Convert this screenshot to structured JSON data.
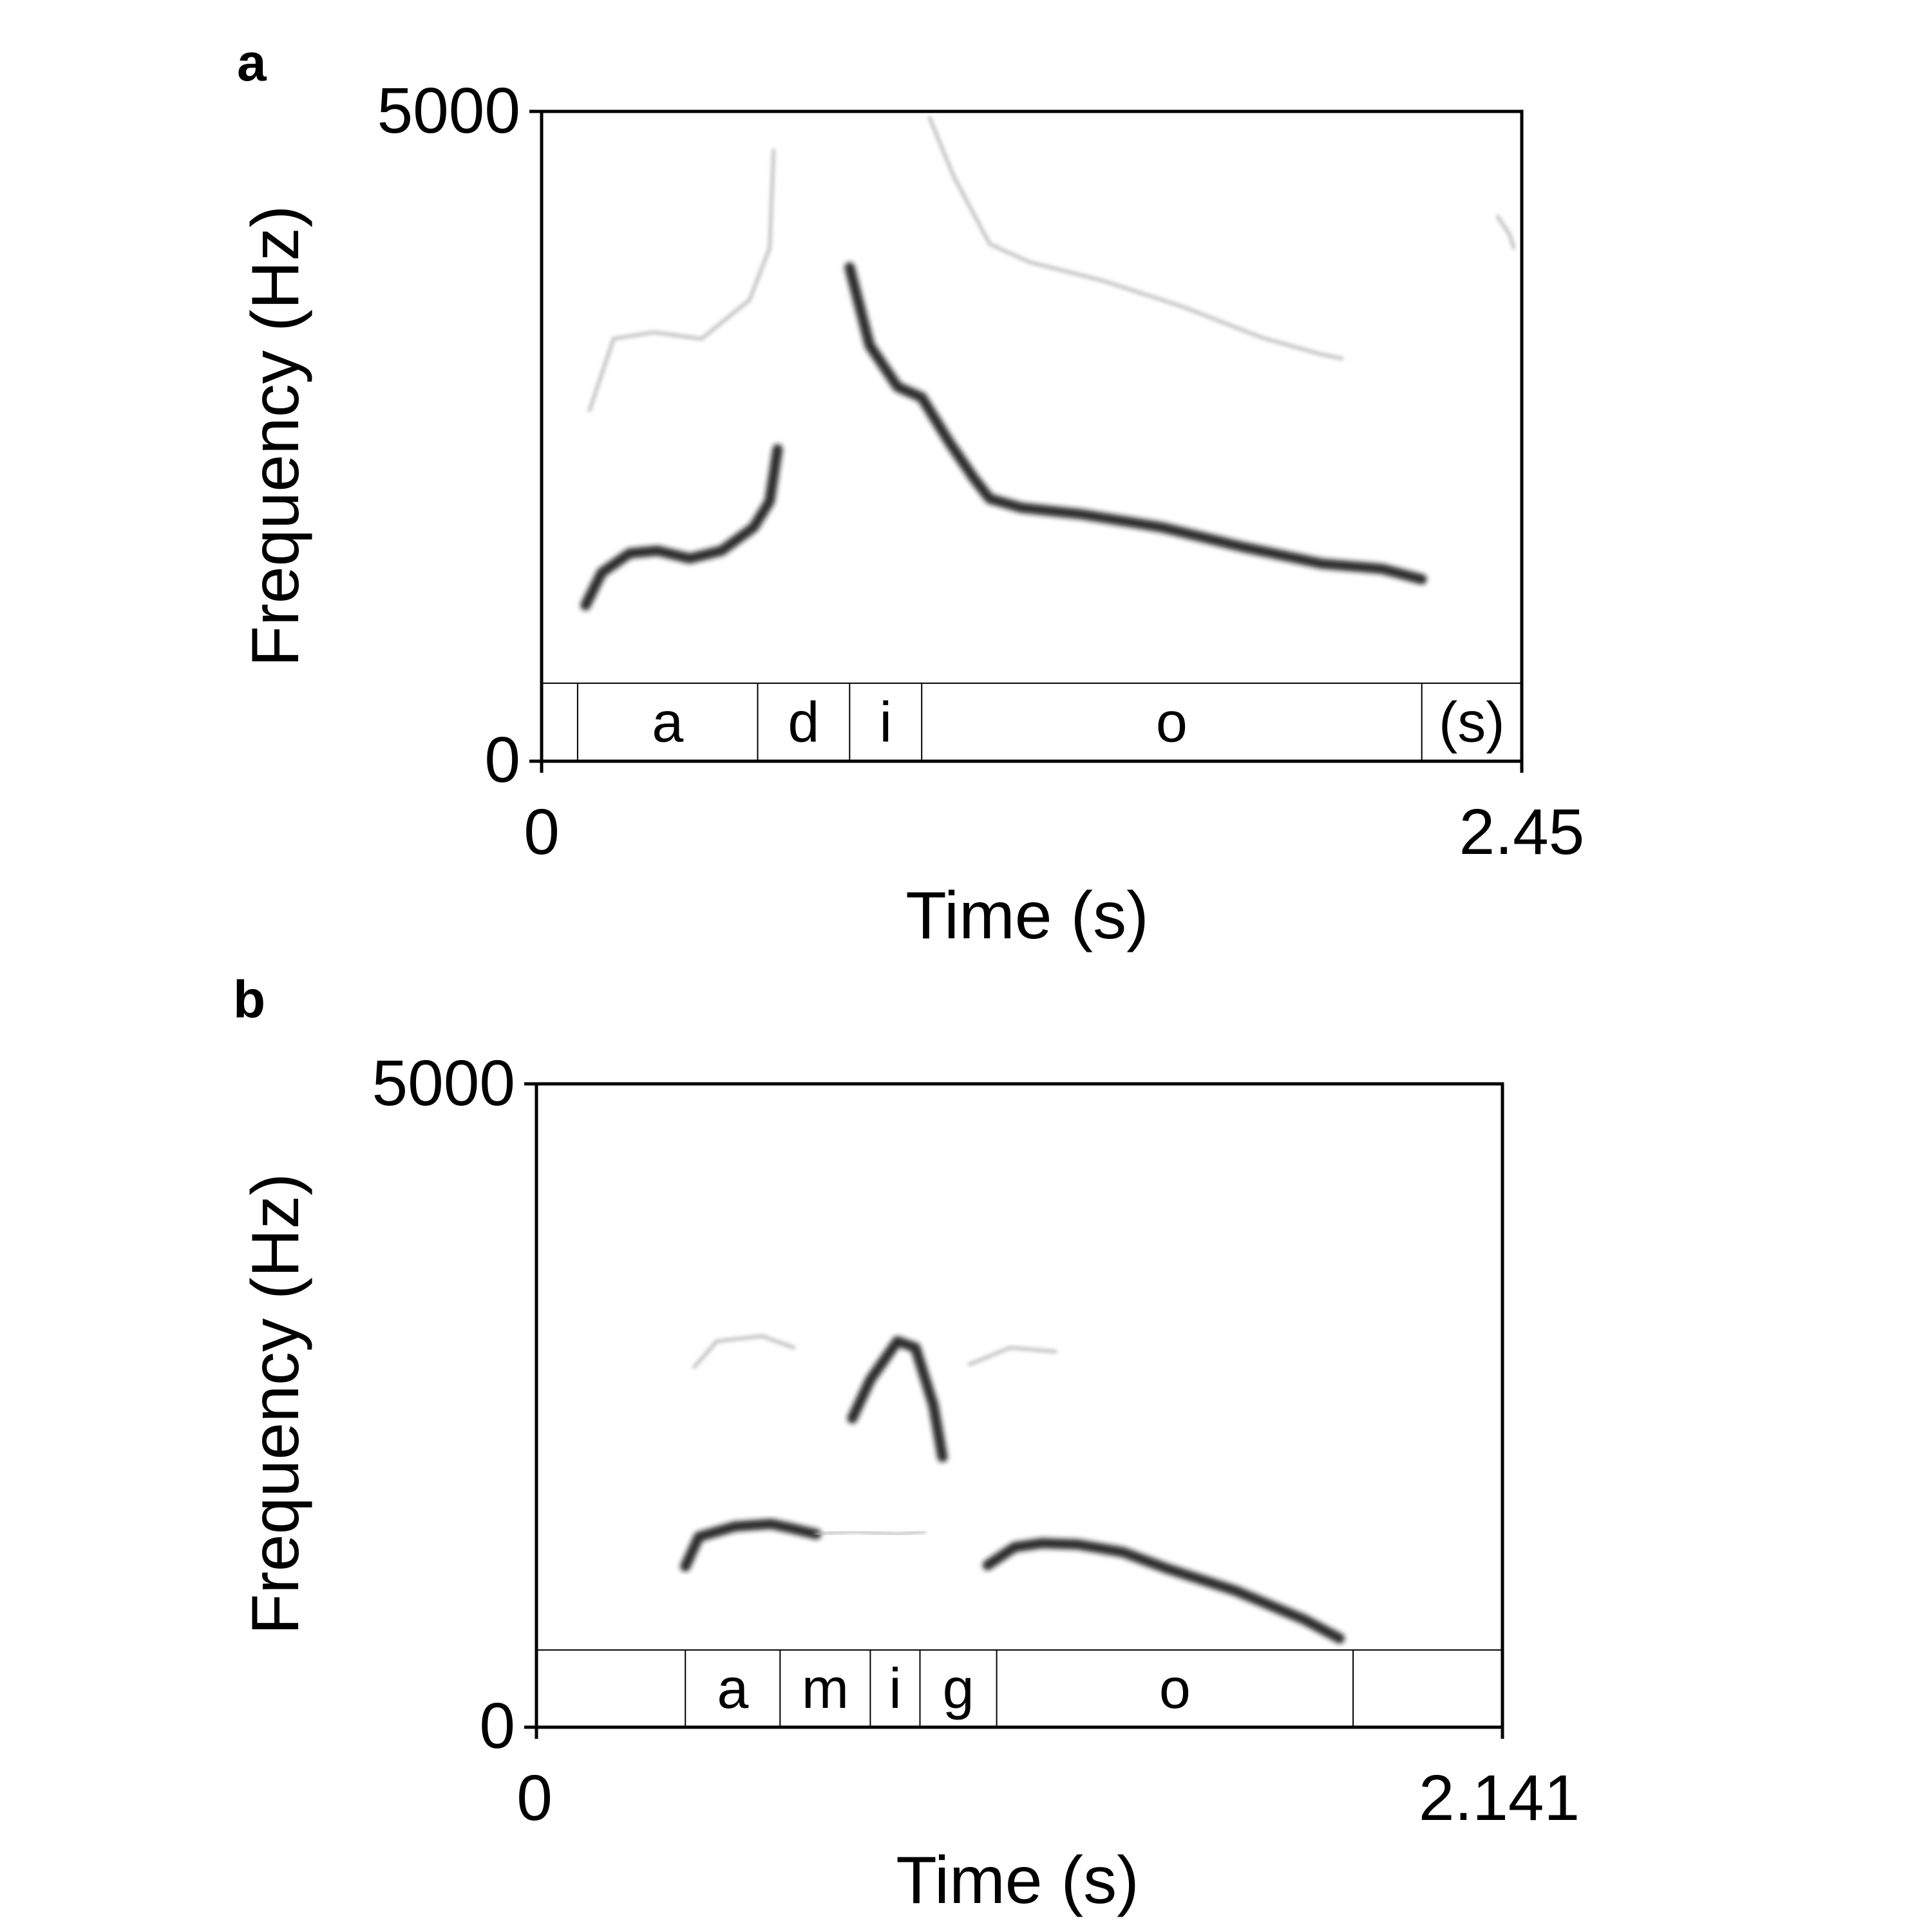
{
  "chart_data": [
    {
      "type": "spectrogram",
      "panel": "a",
      "xlabel": "Time (s)",
      "ylabel": "Frequency (Hz)",
      "xlim": [
        0,
        2.45
      ],
      "ylim": [
        0,
        5000
      ],
      "x_ticks": [
        "0",
        "2.45"
      ],
      "y_ticks": [
        "0",
        "5000"
      ],
      "grid": false,
      "text_grid_top_hz": 600,
      "segments": [
        {
          "label": "",
          "start": 0.0,
          "end": 0.09
        },
        {
          "label": "a",
          "start": 0.09,
          "end": 0.54
        },
        {
          "label": "d",
          "start": 0.54,
          "end": 0.77
        },
        {
          "label": "i",
          "start": 0.77,
          "end": 0.95
        },
        {
          "label": "o",
          "start": 0.95,
          "end": 2.2
        },
        {
          "label": "(s)",
          "start": 2.2,
          "end": 2.45
        }
      ],
      "contours": [
        {
          "name": "f1",
          "intensity": "strong",
          "points": [
            [
              0.11,
              1200
            ],
            [
              0.15,
              1450
            ],
            [
              0.22,
              1600
            ],
            [
              0.29,
              1620
            ],
            [
              0.37,
              1560
            ],
            [
              0.45,
              1620
            ],
            [
              0.53,
              1800
            ],
            [
              0.57,
              2000
            ],
            [
              0.59,
              2400
            ]
          ]
        },
        {
          "name": "f2",
          "intensity": "strong",
          "points": [
            [
              0.77,
              3800
            ],
            [
              0.82,
              3200
            ],
            [
              0.89,
              2880
            ],
            [
              0.95,
              2800
            ],
            [
              1.02,
              2450
            ],
            [
              1.08,
              2180
            ],
            [
              1.12,
              2020
            ],
            [
              1.2,
              1950
            ],
            [
              1.35,
              1900
            ],
            [
              1.55,
              1800
            ],
            [
              1.75,
              1650
            ],
            [
              1.95,
              1520
            ],
            [
              2.1,
              1480
            ],
            [
              2.2,
              1400
            ]
          ]
        },
        {
          "name": "h1",
          "intensity": "faint",
          "points": [
            [
              0.12,
              2700
            ],
            [
              0.18,
              3250
            ],
            [
              0.28,
              3300
            ],
            [
              0.4,
              3250
            ],
            [
              0.52,
              3550
            ],
            [
              0.57,
              3950
            ],
            [
              0.58,
              4700
            ]
          ]
        },
        {
          "name": "h2",
          "intensity": "faint",
          "points": [
            [
              0.97,
              4950
            ],
            [
              1.03,
              4500
            ],
            [
              1.12,
              3980
            ],
            [
              1.22,
              3840
            ],
            [
              1.4,
              3700
            ],
            [
              1.6,
              3500
            ],
            [
              1.8,
              3260
            ],
            [
              1.95,
              3130
            ],
            [
              2.0,
              3100
            ]
          ]
        },
        {
          "name": "h3",
          "intensity": "faint",
          "points": [
            [
              2.39,
              4190
            ],
            [
              2.42,
              4050
            ],
            [
              2.43,
              3950
            ]
          ]
        }
      ]
    },
    {
      "type": "spectrogram",
      "panel": "b",
      "xlabel": "Time (s)",
      "ylabel": "Frequency (Hz)",
      "xlim": [
        0,
        2.141
      ],
      "ylim": [
        0,
        5000
      ],
      "x_ticks": [
        "0",
        "2.141"
      ],
      "y_ticks": [
        "0",
        "5000"
      ],
      "grid": false,
      "text_grid_top_hz": 600,
      "segments": [
        {
          "label": "",
          "start": 0.0,
          "end": 0.33
        },
        {
          "label": "a",
          "start": 0.33,
          "end": 0.54
        },
        {
          "label": "m",
          "start": 0.54,
          "end": 0.74
        },
        {
          "label": "i",
          "start": 0.74,
          "end": 0.85
        },
        {
          "label": "g",
          "start": 0.85,
          "end": 1.02
        },
        {
          "label": "o",
          "start": 1.02,
          "end": 1.81
        },
        {
          "label": "",
          "start": 1.81,
          "end": 2.141
        }
      ],
      "contours": [
        {
          "name": "f1",
          "intensity": "strong",
          "points": [
            [
              0.33,
              1250
            ],
            [
              0.36,
              1480
            ],
            [
              0.44,
              1560
            ],
            [
              0.52,
              1580
            ],
            [
              0.56,
              1550
            ],
            [
              0.62,
              1500
            ]
          ]
        },
        {
          "name": "f1-tail",
          "intensity": "faint",
          "points": [
            [
              0.62,
              1500
            ],
            [
              0.7,
              1520
            ],
            [
              0.8,
              1500
            ],
            [
              0.86,
              1520
            ]
          ]
        },
        {
          "name": "f2",
          "intensity": "strong",
          "points": [
            [
              1.0,
              1260
            ],
            [
              1.06,
              1400
            ],
            [
              1.12,
              1430
            ],
            [
              1.2,
              1420
            ],
            [
              1.3,
              1360
            ],
            [
              1.4,
              1230
            ],
            [
              1.55,
              1060
            ],
            [
              1.7,
              840
            ],
            [
              1.78,
              690
            ]
          ]
        },
        {
          "name": "h1",
          "intensity": "faint",
          "points": [
            [
              0.35,
              2800
            ],
            [
              0.4,
              3000
            ],
            [
              0.5,
              3040
            ],
            [
              0.57,
              2950
            ]
          ]
        },
        {
          "name": "h2",
          "intensity": "strong",
          "points": [
            [
              0.7,
              2400
            ],
            [
              0.74,
              2700
            ],
            [
              0.8,
              3000
            ],
            [
              0.84,
              2950
            ],
            [
              0.88,
              2500
            ],
            [
              0.9,
              2100
            ]
          ]
        },
        {
          "name": "h3",
          "intensity": "faint",
          "points": [
            [
              0.96,
              2820
            ],
            [
              1.05,
              2950
            ],
            [
              1.15,
              2920
            ]
          ]
        }
      ]
    }
  ]
}
